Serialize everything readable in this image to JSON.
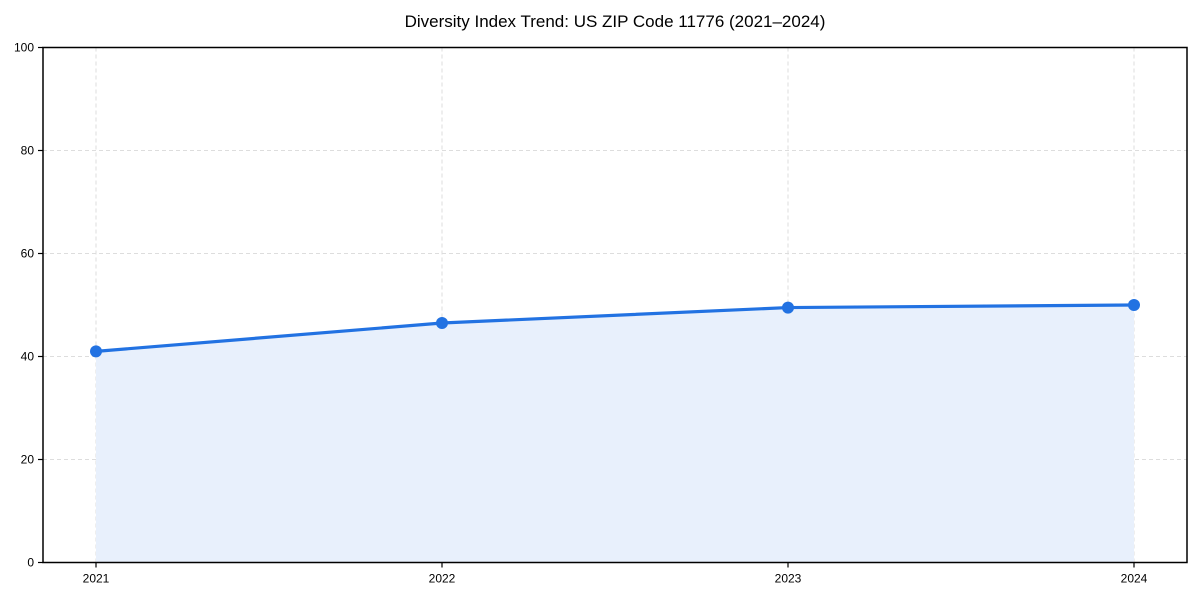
{
  "chart_data": {
    "type": "area",
    "title": "Diversity Index Trend: US ZIP Code 11776 (2021–2024)",
    "categories": [
      "2021",
      "2022",
      "2023",
      "2024"
    ],
    "series": [
      {
        "name": "Diversity Index",
        "values": [
          41,
          46.5,
          49.5,
          50
        ]
      }
    ],
    "xlabel": "",
    "ylabel": "",
    "ylim": [
      0,
      100
    ],
    "yticks": [
      0,
      20,
      40,
      60,
      80,
      100
    ],
    "grid": "dashed-both-axes",
    "legend": "none",
    "marker": "circle",
    "colors": {
      "line": "#2272e2",
      "marker": "#2272e2",
      "area_fill": "#e8f0fc",
      "grid": "#dddddd",
      "axis": "#000000",
      "text": "#000000",
      "background": "#ffffff"
    }
  }
}
